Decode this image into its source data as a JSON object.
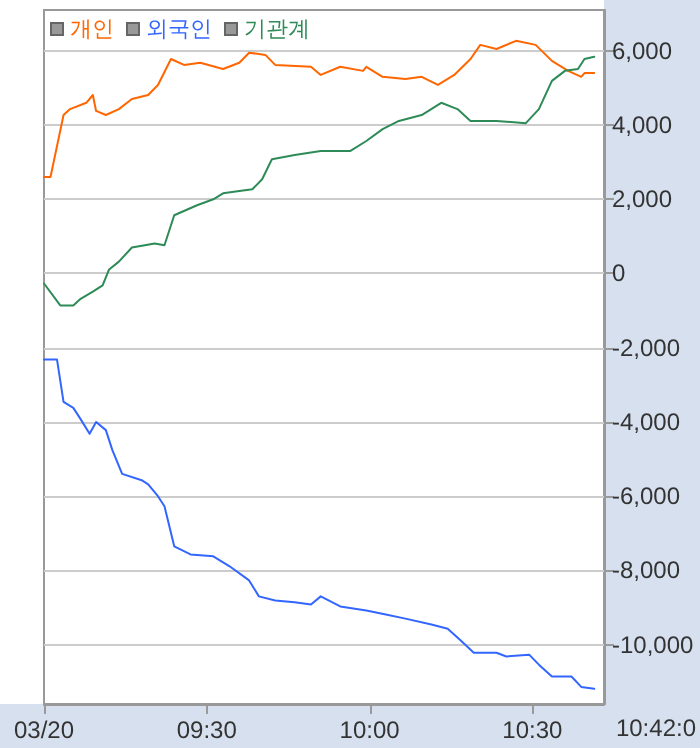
{
  "chart_data": {
    "type": "line",
    "legend": "top left",
    "grid": "y",
    "marker": "none",
    "line_style": "solid",
    "xlim": [
      9,
      10.72
    ],
    "ylim": [
      -11600,
      7100
    ],
    "xticks": [
      {
        "value": 9,
        "label": "03/20"
      },
      {
        "value": 9.5,
        "label": "09:30"
      },
      {
        "value": 10,
        "label": "10:00"
      },
      {
        "value": 10.5,
        "label": "10:30"
      }
    ],
    "yticks": [
      {
        "value": -10000,
        "label": "-10,000"
      },
      {
        "value": -8000,
        "label": "-8,000"
      },
      {
        "value": -6000,
        "label": "-6,000"
      },
      {
        "value": -4000,
        "label": "-4,000"
      },
      {
        "value": -2000,
        "label": "-2,000"
      },
      {
        "value": 0,
        "label": "0"
      },
      {
        "value": 2000,
        "label": "2,000"
      },
      {
        "value": 4000,
        "label": "4,000"
      },
      {
        "value": 6000,
        "label": "6,000"
      }
    ],
    "annotations": [
      "10:42:0"
    ],
    "series": [
      {
        "name": "개인",
        "color": "#ff6600",
        "x": [
          9.0,
          9.02,
          9.06,
          9.08,
          9.13,
          9.15,
          9.16,
          9.19,
          9.23,
          9.27,
          9.32,
          9.35,
          9.39,
          9.43,
          9.48,
          9.55,
          9.6,
          9.63,
          9.68,
          9.71,
          9.82,
          9.85,
          9.91,
          9.98,
          9.99,
          10.04,
          10.11,
          10.16,
          10.21,
          10.26,
          10.31,
          10.34,
          10.39,
          10.45,
          10.51,
          10.56,
          10.61,
          10.65,
          10.66,
          10.69
        ],
        "values": [
          2600,
          2600,
          4270,
          4430,
          4600,
          4810,
          4380,
          4270,
          4430,
          4700,
          4810,
          5080,
          5780,
          5620,
          5680,
          5510,
          5680,
          5950,
          5890,
          5620,
          5570,
          5350,
          5570,
          5460,
          5570,
          5300,
          5240,
          5300,
          5080,
          5350,
          5780,
          6160,
          6050,
          6270,
          6160,
          5730,
          5460,
          5300,
          5400,
          5400
        ]
      },
      {
        "name": "외국인",
        "color": "#3366ff",
        "x": [
          9.0,
          9.04,
          9.06,
          9.09,
          9.11,
          9.14,
          9.16,
          9.19,
          9.21,
          9.24,
          9.3,
          9.32,
          9.35,
          9.37,
          9.4,
          9.45,
          9.52,
          9.57,
          9.63,
          9.66,
          9.71,
          9.77,
          9.82,
          9.85,
          9.91,
          9.99,
          10.05,
          10.11,
          10.19,
          10.24,
          10.28,
          10.32,
          10.39,
          10.42,
          10.49,
          10.52,
          10.56,
          10.62,
          10.65,
          10.69
        ],
        "values": [
          -2320,
          -2320,
          -3460,
          -3620,
          -3890,
          -4320,
          -4000,
          -4220,
          -4760,
          -5400,
          -5570,
          -5680,
          -6000,
          -6270,
          -7350,
          -7570,
          -7620,
          -7890,
          -8270,
          -8700,
          -8810,
          -8860,
          -8920,
          -8700,
          -8970,
          -9080,
          -9190,
          -9300,
          -9460,
          -9570,
          -9890,
          -10220,
          -10220,
          -10320,
          -10270,
          -10540,
          -10860,
          -10860,
          -11140,
          -11190
        ]
      },
      {
        "name": "기관계",
        "color": "#2e8b57",
        "x": [
          9.0,
          9.05,
          9.09,
          9.11,
          9.15,
          9.18,
          9.2,
          9.23,
          9.27,
          9.34,
          9.37,
          9.4,
          9.47,
          9.52,
          9.55,
          9.6,
          9.64,
          9.67,
          9.7,
          9.77,
          9.85,
          9.94,
          9.99,
          10.04,
          10.09,
          10.16,
          10.22,
          10.27,
          10.31,
          10.39,
          10.48,
          10.52,
          10.56,
          10.6,
          10.64,
          10.66,
          10.69
        ],
        "values": [
          -270,
          -860,
          -860,
          -700,
          -490,
          -320,
          110,
          320,
          700,
          810,
          760,
          1570,
          1840,
          2000,
          2160,
          2220,
          2270,
          2540,
          3080,
          3190,
          3300,
          3300,
          3570,
          3890,
          4110,
          4270,
          4600,
          4430,
          4110,
          4110,
          4050,
          4430,
          5190,
          5460,
          5510,
          5780,
          5840
        ]
      }
    ]
  }
}
